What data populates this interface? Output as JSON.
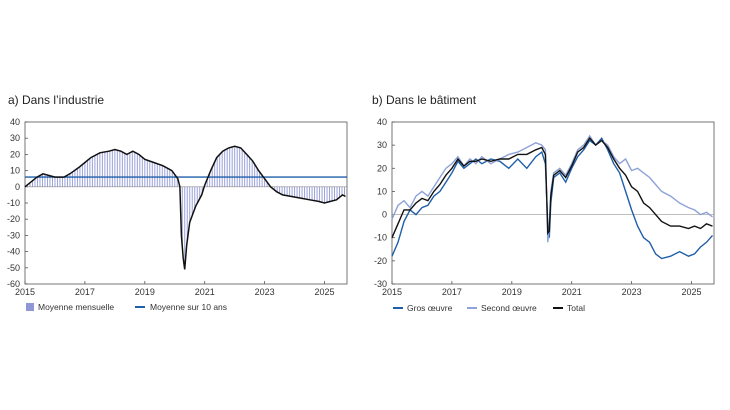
{
  "panels": {
    "a_title": "a) Dans l’industrie",
    "b_title": "b) Dans le bâtiment"
  },
  "colors": {
    "bar_fill": "#8f97d6",
    "avg_line": "#1f5ea8",
    "series_line": "#111111",
    "gros": "#1f5ea8",
    "second": "#8ea2d8",
    "total": "#111111"
  },
  "chart_data": [
    {
      "type": "bar",
      "panel": "a",
      "title": "a) Dans l’industrie",
      "xlim": [
        2015,
        2025.75
      ],
      "ylim": [
        -60,
        40
      ],
      "xticks": [
        "2015",
        "2017",
        "2019",
        "2021",
        "2023",
        "2025"
      ],
      "yticks": [
        "40",
        "30",
        "20",
        "10",
        "0",
        "-10",
        "-20",
        "-30",
        "-40",
        "-50",
        "-60"
      ],
      "legend": [
        {
          "label": "Moyenne mensuelle",
          "kind": "bar"
        },
        {
          "label": "Moyenne sur 10 ans",
          "kind": "line"
        }
      ],
      "ten_year_average": 6,
      "series_points": [
        [
          2015.0,
          0
        ],
        [
          2015.2,
          3
        ],
        [
          2015.4,
          6
        ],
        [
          2015.6,
          8
        ],
        [
          2015.8,
          7
        ],
        [
          2016.0,
          6
        ],
        [
          2016.3,
          6
        ],
        [
          2016.5,
          8
        ],
        [
          2016.8,
          12
        ],
        [
          2017.0,
          15
        ],
        [
          2017.2,
          18
        ],
        [
          2017.5,
          21
        ],
        [
          2017.8,
          22
        ],
        [
          2018.0,
          23
        ],
        [
          2018.2,
          22
        ],
        [
          2018.4,
          20
        ],
        [
          2018.6,
          22
        ],
        [
          2018.8,
          20
        ],
        [
          2019.0,
          17
        ],
        [
          2019.3,
          15
        ],
        [
          2019.6,
          13
        ],
        [
          2019.9,
          10
        ],
        [
          2020.1,
          5
        ],
        [
          2020.17,
          0
        ],
        [
          2020.22,
          -30
        ],
        [
          2020.28,
          -44
        ],
        [
          2020.33,
          -51
        ],
        [
          2020.4,
          -36
        ],
        [
          2020.5,
          -22
        ],
        [
          2020.7,
          -12
        ],
        [
          2020.9,
          -5
        ],
        [
          2021.0,
          1
        ],
        [
          2021.2,
          10
        ],
        [
          2021.4,
          18
        ],
        [
          2021.6,
          22
        ],
        [
          2021.8,
          24
        ],
        [
          2022.0,
          25
        ],
        [
          2022.2,
          24
        ],
        [
          2022.4,
          20
        ],
        [
          2022.6,
          16
        ],
        [
          2022.8,
          10
        ],
        [
          2023.0,
          5
        ],
        [
          2023.2,
          0
        ],
        [
          2023.4,
          -3
        ],
        [
          2023.6,
          -5
        ],
        [
          2023.9,
          -6
        ],
        [
          2024.2,
          -7
        ],
        [
          2024.5,
          -8
        ],
        [
          2024.8,
          -9
        ],
        [
          2025.0,
          -10
        ],
        [
          2025.2,
          -9
        ],
        [
          2025.4,
          -8
        ],
        [
          2025.6,
          -5
        ],
        [
          2025.7,
          -6
        ]
      ]
    },
    {
      "type": "line",
      "panel": "b",
      "title": "b) Dans le bâtiment",
      "xlim": [
        2015,
        2025.75
      ],
      "ylim": [
        -30,
        40
      ],
      "xticks": [
        "2015",
        "2017",
        "2019",
        "2021",
        "2023",
        "2025"
      ],
      "yticks": [
        "40",
        "30",
        "20",
        "10",
        "0",
        "-10",
        "-20",
        "-30"
      ],
      "series": [
        {
          "name": "Gros œuvre",
          "points": [
            [
              2015.0,
              -18
            ],
            [
              2015.2,
              -12
            ],
            [
              2015.4,
              -3
            ],
            [
              2015.6,
              2
            ],
            [
              2015.8,
              0
            ],
            [
              2016.0,
              3
            ],
            [
              2016.2,
              4
            ],
            [
              2016.4,
              8
            ],
            [
              2016.6,
              10
            ],
            [
              2016.8,
              14
            ],
            [
              2017.0,
              18
            ],
            [
              2017.2,
              23
            ],
            [
              2017.4,
              20
            ],
            [
              2017.6,
              22
            ],
            [
              2017.8,
              24
            ],
            [
              2018.0,
              22
            ],
            [
              2018.3,
              24
            ],
            [
              2018.6,
              23
            ],
            [
              2018.9,
              20
            ],
            [
              2019.2,
              24
            ],
            [
              2019.5,
              20
            ],
            [
              2019.8,
              25
            ],
            [
              2020.0,
              27
            ],
            [
              2020.12,
              22
            ],
            [
              2020.2,
              -5
            ],
            [
              2020.25,
              -10
            ],
            [
              2020.3,
              5
            ],
            [
              2020.4,
              16
            ],
            [
              2020.6,
              18
            ],
            [
              2020.8,
              14
            ],
            [
              2021.0,
              20
            ],
            [
              2021.2,
              25
            ],
            [
              2021.4,
              28
            ],
            [
              2021.6,
              32
            ],
            [
              2021.8,
              30
            ],
            [
              2022.0,
              33
            ],
            [
              2022.2,
              28
            ],
            [
              2022.4,
              22
            ],
            [
              2022.6,
              18
            ],
            [
              2022.8,
              10
            ],
            [
              2023.0,
              2
            ],
            [
              2023.2,
              -5
            ],
            [
              2023.4,
              -10
            ],
            [
              2023.6,
              -12
            ],
            [
              2023.8,
              -17
            ],
            [
              2024.0,
              -19
            ],
            [
              2024.3,
              -18
            ],
            [
              2024.6,
              -16
            ],
            [
              2024.9,
              -18
            ],
            [
              2025.1,
              -17
            ],
            [
              2025.3,
              -14
            ],
            [
              2025.5,
              -12
            ],
            [
              2025.7,
              -9
            ]
          ]
        },
        {
          "name": "Second œuvre",
          "points": [
            [
              2015.0,
              -2
            ],
            [
              2015.2,
              4
            ],
            [
              2015.4,
              6
            ],
            [
              2015.6,
              3
            ],
            [
              2015.8,
              8
            ],
            [
              2016.0,
              10
            ],
            [
              2016.2,
              8
            ],
            [
              2016.4,
              12
            ],
            [
              2016.6,
              16
            ],
            [
              2016.8,
              20
            ],
            [
              2017.0,
              22
            ],
            [
              2017.2,
              25
            ],
            [
              2017.4,
              21
            ],
            [
              2017.6,
              24
            ],
            [
              2017.8,
              22
            ],
            [
              2018.0,
              25
            ],
            [
              2018.3,
              22
            ],
            [
              2018.6,
              24
            ],
            [
              2018.9,
              26
            ],
            [
              2019.2,
              27
            ],
            [
              2019.5,
              29
            ],
            [
              2019.8,
              31
            ],
            [
              2020.0,
              30
            ],
            [
              2020.12,
              28
            ],
            [
              2020.2,
              -12
            ],
            [
              2020.25,
              -5
            ],
            [
              2020.3,
              10
            ],
            [
              2020.4,
              18
            ],
            [
              2020.6,
              20
            ],
            [
              2020.8,
              17
            ],
            [
              2021.0,
              22
            ],
            [
              2021.2,
              28
            ],
            [
              2021.4,
              30
            ],
            [
              2021.6,
              34
            ],
            [
              2021.8,
              30
            ],
            [
              2022.0,
              32
            ],
            [
              2022.2,
              30
            ],
            [
              2022.4,
              25
            ],
            [
              2022.6,
              22
            ],
            [
              2022.8,
              24
            ],
            [
              2023.0,
              19
            ],
            [
              2023.2,
              20
            ],
            [
              2023.4,
              18
            ],
            [
              2023.6,
              16
            ],
            [
              2023.8,
              13
            ],
            [
              2024.0,
              10
            ],
            [
              2024.3,
              8
            ],
            [
              2024.6,
              5
            ],
            [
              2024.9,
              3
            ],
            [
              2025.1,
              2
            ],
            [
              2025.3,
              0
            ],
            [
              2025.5,
              1
            ],
            [
              2025.7,
              -1
            ]
          ]
        },
        {
          "name": "Total",
          "points": [
            [
              2015.0,
              -10
            ],
            [
              2015.2,
              -4
            ],
            [
              2015.4,
              2
            ],
            [
              2015.6,
              2
            ],
            [
              2015.8,
              5
            ],
            [
              2016.0,
              7
            ],
            [
              2016.2,
              6
            ],
            [
              2016.4,
              10
            ],
            [
              2016.6,
              13
            ],
            [
              2016.8,
              17
            ],
            [
              2017.0,
              20
            ],
            [
              2017.2,
              24
            ],
            [
              2017.4,
              21
            ],
            [
              2017.6,
              23
            ],
            [
              2017.8,
              23
            ],
            [
              2018.0,
              24
            ],
            [
              2018.3,
              23
            ],
            [
              2018.6,
              24
            ],
            [
              2018.9,
              24
            ],
            [
              2019.2,
              26
            ],
            [
              2019.5,
              26
            ],
            [
              2019.8,
              28
            ],
            [
              2020.0,
              29
            ],
            [
              2020.12,
              26
            ],
            [
              2020.2,
              -8
            ],
            [
              2020.25,
              -7
            ],
            [
              2020.3,
              8
            ],
            [
              2020.4,
              17
            ],
            [
              2020.6,
              19
            ],
            [
              2020.8,
              16
            ],
            [
              2021.0,
              21
            ],
            [
              2021.2,
              27
            ],
            [
              2021.4,
              29
            ],
            [
              2021.6,
              33
            ],
            [
              2021.8,
              30
            ],
            [
              2022.0,
              32
            ],
            [
              2022.2,
              29
            ],
            [
              2022.4,
              24
            ],
            [
              2022.6,
              20
            ],
            [
              2022.8,
              17
            ],
            [
              2023.0,
              12
            ],
            [
              2023.2,
              10
            ],
            [
              2023.4,
              5
            ],
            [
              2023.6,
              3
            ],
            [
              2023.8,
              0
            ],
            [
              2024.0,
              -3
            ],
            [
              2024.3,
              -5
            ],
            [
              2024.6,
              -5
            ],
            [
              2024.9,
              -6
            ],
            [
              2025.1,
              -5
            ],
            [
              2025.3,
              -6
            ],
            [
              2025.5,
              -4
            ],
            [
              2025.7,
              -5
            ]
          ]
        }
      ]
    }
  ]
}
